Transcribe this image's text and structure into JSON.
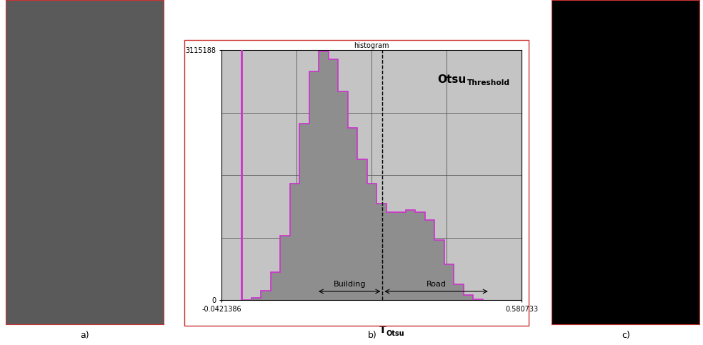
{
  "panel_labels": [
    "a)",
    "b)",
    "c)"
  ],
  "chart_data": {
    "type": "histogram",
    "title": "histogram",
    "bins": [
      0.0,
      0.02,
      0.04,
      0.06,
      0.08,
      0.1,
      0.12,
      0.14,
      0.16,
      0.18,
      0.2,
      0.22,
      0.24,
      0.26,
      0.28,
      0.3,
      0.32,
      0.34,
      0.36,
      0.38,
      0.4,
      0.42,
      0.44,
      0.46,
      0.48,
      0.5
    ],
    "counts": [
      5000,
      30000,
      120000,
      350000,
      800000,
      1450000,
      2200000,
      2850000,
      3100000,
      3000000,
      2600000,
      2150000,
      1750000,
      1450000,
      1200000,
      1100000,
      1100000,
      1120000,
      1100000,
      1000000,
      750000,
      450000,
      200000,
      60000,
      10000
    ],
    "color": "#cc33cc",
    "xlim": [
      -0.0421386,
      0.580733
    ],
    "ylim": [
      0,
      3115188
    ],
    "xticks": [
      -0.0421386,
      0.580733
    ],
    "yticks": [
      0,
      3115188
    ],
    "grid": true,
    "reference_line": 0.0,
    "threshold": {
      "value": 0.292,
      "text": "T",
      "subscript": "Otsu",
      "line_style": "dashed"
    },
    "annotations": [
      {
        "text": "Otsu",
        "subscript": "Threshold"
      }
    ],
    "ranges": [
      {
        "label": "Building",
        "from": 0.155,
        "to": 0.292
      },
      {
        "label": "Road",
        "from": 0.292,
        "to": 0.515
      }
    ]
  }
}
